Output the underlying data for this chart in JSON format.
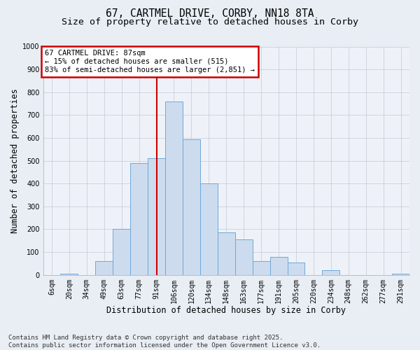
{
  "title": "67, CARTMEL DRIVE, CORBY, NN18 8TA",
  "subtitle": "Size of property relative to detached houses in Corby",
  "xlabel": "Distribution of detached houses by size in Corby",
  "ylabel": "Number of detached properties",
  "categories": [
    "6sqm",
    "20sqm",
    "34sqm",
    "49sqm",
    "63sqm",
    "77sqm",
    "91sqm",
    "106sqm",
    "120sqm",
    "134sqm",
    "148sqm",
    "163sqm",
    "177sqm",
    "191sqm",
    "205sqm",
    "220sqm",
    "234sqm",
    "248sqm",
    "262sqm",
    "277sqm",
    "291sqm"
  ],
  "values": [
    0,
    5,
    0,
    60,
    200,
    490,
    510,
    760,
    595,
    400,
    185,
    155,
    60,
    80,
    55,
    0,
    20,
    0,
    0,
    0,
    5
  ],
  "bar_color": "#ccdcee",
  "bar_edge_color": "#6fa8d8",
  "vline_x": 6,
  "vline_color": "#cc0000",
  "annotation_text": "67 CARTMEL DRIVE: 87sqm\n← 15% of detached houses are smaller (515)\n83% of semi-detached houses are larger (2,851) →",
  "annotation_box_color": "#cc0000",
  "ylim": [
    0,
    1000
  ],
  "yticks": [
    0,
    100,
    200,
    300,
    400,
    500,
    600,
    700,
    800,
    900,
    1000
  ],
  "footer": "Contains HM Land Registry data © Crown copyright and database right 2025.\nContains public sector information licensed under the Open Government Licence v3.0.",
  "bg_color": "#e8eef4",
  "plot_bg_color": "#eef2f8",
  "grid_color": "#c8d0dc",
  "title_fontsize": 10.5,
  "subtitle_fontsize": 9.5,
  "axis_label_fontsize": 8.5,
  "tick_fontsize": 7,
  "footer_fontsize": 6.5
}
